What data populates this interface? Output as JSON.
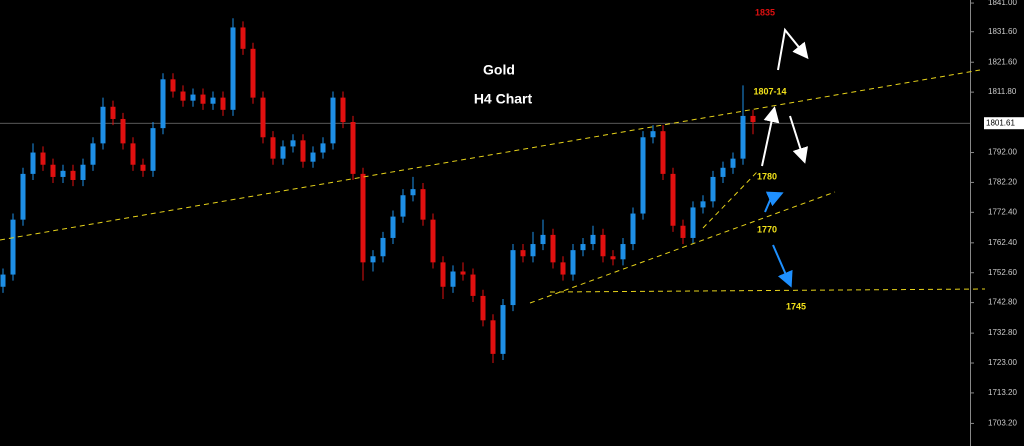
{
  "chart_data": {
    "type": "candlestick",
    "title": "Gold",
    "subtitle": "H4 Chart",
    "annotations": [
      "1835",
      "1807-14",
      "1780",
      "1770",
      "1745"
    ],
    "up_color": "#1e8fe6",
    "down_color": "#e01010",
    "ylim": [
      1695.8,
      1842.0
    ],
    "yticks": [
      {
        "value": 1841,
        "label": "1841.00"
      },
      {
        "value": 1831.6,
        "label": "1831.60"
      },
      {
        "value": 1821.6,
        "label": "1821.60"
      },
      {
        "value": 1811.8,
        "label": "1811.80"
      },
      {
        "value": 1792,
        "label": "1792.00"
      },
      {
        "value": 1782.2,
        "label": "1782.20"
      },
      {
        "value": 1772.4,
        "label": "1772.40"
      },
      {
        "value": 1762.4,
        "label": "1762.40"
      },
      {
        "value": 1752.6,
        "label": "1752.60"
      },
      {
        "value": 1742.8,
        "label": "1742.80"
      },
      {
        "value": 1732.8,
        "label": "1732.80"
      },
      {
        "value": 1723,
        "label": "1723.00"
      },
      {
        "value": 1713.2,
        "label": "1713.20"
      },
      {
        "value": 1703.2,
        "label": "1703.20"
      }
    ],
    "current_price": {
      "value": 1801.61,
      "label": "1801.61"
    },
    "candles": [
      [
        1748,
        1754,
        1746,
        1752
      ],
      [
        1752,
        1772,
        1750,
        1770
      ],
      [
        1770,
        1787,
        1768,
        1785
      ],
      [
        1785,
        1795,
        1783,
        1792
      ],
      [
        1792,
        1794,
        1786,
        1788
      ],
      [
        1788,
        1790,
        1782,
        1784
      ],
      [
        1784,
        1788,
        1782,
        1786
      ],
      [
        1786,
        1788,
        1781,
        1783
      ],
      [
        1783,
        1790,
        1781,
        1788
      ],
      [
        1788,
        1797,
        1786,
        1795
      ],
      [
        1795,
        1810,
        1793,
        1807
      ],
      [
        1807,
        1809,
        1801,
        1803
      ],
      [
        1803,
        1805,
        1793,
        1795
      ],
      [
        1795,
        1797,
        1786,
        1788
      ],
      [
        1788,
        1790,
        1784,
        1786
      ],
      [
        1786,
        1802,
        1784,
        1800
      ],
      [
        1800,
        1818,
        1798,
        1816
      ],
      [
        1816,
        1818,
        1810,
        1812
      ],
      [
        1812,
        1814,
        1807,
        1809
      ],
      [
        1809,
        1813,
        1807,
        1811
      ],
      [
        1811,
        1813,
        1806,
        1808
      ],
      [
        1808,
        1812,
        1806,
        1810
      ],
      [
        1810,
        1812,
        1804,
        1806
      ],
      [
        1806,
        1836,
        1804,
        1833
      ],
      [
        1833,
        1835,
        1824,
        1826
      ],
      [
        1826,
        1828,
        1808,
        1810
      ],
      [
        1810,
        1812,
        1795,
        1797
      ],
      [
        1797,
        1799,
        1788,
        1790
      ],
      [
        1790,
        1796,
        1788,
        1794
      ],
      [
        1794,
        1798,
        1792,
        1796
      ],
      [
        1796,
        1798,
        1787,
        1789
      ],
      [
        1789,
        1794,
        1787,
        1792
      ],
      [
        1792,
        1797,
        1790,
        1795
      ],
      [
        1795,
        1812,
        1793,
        1810
      ],
      [
        1810,
        1812,
        1800,
        1802
      ],
      [
        1802,
        1804,
        1783,
        1785
      ],
      [
        1785,
        1787,
        1750,
        1756
      ],
      [
        1756,
        1760,
        1753,
        1758
      ],
      [
        1758,
        1766,
        1756,
        1764
      ],
      [
        1764,
        1773,
        1762,
        1771
      ],
      [
        1771,
        1780,
        1769,
        1778
      ],
      [
        1778,
        1784,
        1776,
        1780
      ],
      [
        1780,
        1782,
        1768,
        1770
      ],
      [
        1770,
        1772,
        1754,
        1756
      ],
      [
        1756,
        1758,
        1744,
        1748
      ],
      [
        1748,
        1755,
        1746,
        1753
      ],
      [
        1753,
        1756,
        1750,
        1752
      ],
      [
        1752,
        1754,
        1743,
        1745
      ],
      [
        1745,
        1747,
        1735,
        1737
      ],
      [
        1737,
        1739,
        1723,
        1726
      ],
      [
        1726,
        1744,
        1724,
        1742
      ],
      [
        1742,
        1762,
        1740,
        1760
      ],
      [
        1760,
        1762,
        1756,
        1758
      ],
      [
        1758,
        1766,
        1756,
        1762
      ],
      [
        1762,
        1770,
        1760,
        1765
      ],
      [
        1765,
        1767,
        1754,
        1756
      ],
      [
        1756,
        1758,
        1750,
        1752
      ],
      [
        1752,
        1762,
        1750,
        1760
      ],
      [
        1760,
        1764,
        1758,
        1762
      ],
      [
        1762,
        1768,
        1760,
        1765
      ],
      [
        1765,
        1767,
        1756,
        1758
      ],
      [
        1758,
        1760,
        1755,
        1757
      ],
      [
        1757,
        1764,
        1755,
        1762
      ],
      [
        1762,
        1774,
        1760,
        1772
      ],
      [
        1772,
        1799,
        1770,
        1797
      ],
      [
        1797,
        1801,
        1795,
        1799
      ],
      [
        1799,
        1801,
        1783,
        1785
      ],
      [
        1785,
        1787,
        1766,
        1768
      ],
      [
        1768,
        1770,
        1762,
        1764
      ],
      [
        1764,
        1776,
        1762,
        1774
      ],
      [
        1774,
        1778,
        1772,
        1776
      ],
      [
        1776,
        1786,
        1774,
        1784
      ],
      [
        1784,
        1789,
        1782,
        1787
      ],
      [
        1787,
        1792,
        1785,
        1790
      ],
      [
        1790,
        1814,
        1788,
        1804
      ],
      [
        1804,
        1806,
        1798,
        1802
      ]
    ]
  }
}
